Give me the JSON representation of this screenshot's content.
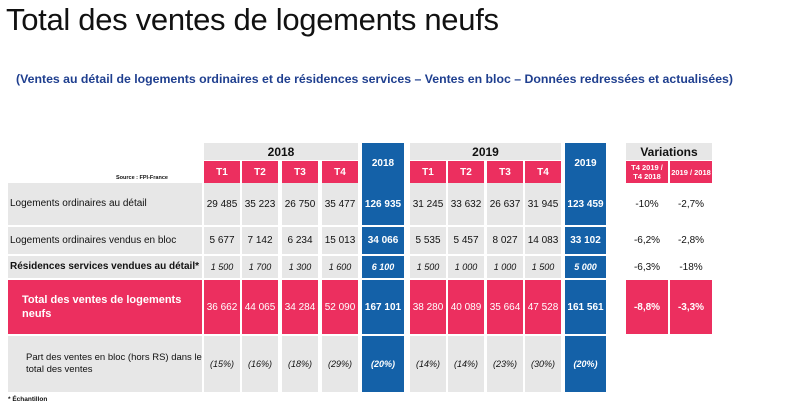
{
  "title": "Total des ventes de logements neufs",
  "subtitle": "(Ventes au détail de logements ordinaires et de résidences services – Ventes en bloc – Données redressées et actualisées)",
  "source": "Source : FPI-France",
  "footnote": "* Échantillon",
  "years": {
    "y2018": "2018",
    "y2019": "2019"
  },
  "variations": {
    "title": "Variations",
    "col1": "T4 2019 / T4 2018",
    "col2": "2019 / 2018"
  },
  "quarters": [
    "T1",
    "T2",
    "T3",
    "T4"
  ],
  "rows": [
    {
      "label": "Logements ordinaires au détail",
      "q2018": [
        "29 485",
        "35 223",
        "26 750",
        "35 477"
      ],
      "total2018": "126 935",
      "q2019": [
        "31 245",
        "33 632",
        "26 637",
        "31 945"
      ],
      "total2019": "123 459",
      "var1": "-10%",
      "var2": "-2,7%"
    },
    {
      "label": "Logements ordinaires vendus en bloc",
      "q2018": [
        "5 677",
        "7 142",
        "6 234",
        "15 013"
      ],
      "total2018": "34 066",
      "q2019": [
        "5 535",
        "5 457",
        "8 027",
        "14 083"
      ],
      "total2019": "33 102",
      "var1": "-6,2%",
      "var2": "-2,8%"
    },
    {
      "label": "Résidences services vendues au détail*",
      "q2018": [
        "1 500",
        "1 700",
        "1 300",
        "1 600"
      ],
      "total2018": "6 100",
      "q2019": [
        "1 500",
        "1 000",
        "1 000",
        "1 500"
      ],
      "total2019": "5 000",
      "var1": "-6,3%",
      "var2": "-18%"
    },
    {
      "label": "Total des ventes de logements neufs",
      "q2018": [
        "36 662",
        "44 065",
        "34 284",
        "52 090"
      ],
      "total2018": "167 101",
      "q2019": [
        "38 280",
        "40 089",
        "35 664",
        "47 528"
      ],
      "total2019": "161 561",
      "var1": "-8,8%",
      "var2": "-3,3%"
    },
    {
      "label": "Part des ventes en bloc (hors RS) dans le total des ventes",
      "q2018": [
        "(15%)",
        "(16%)",
        "(18%)",
        "(29%)"
      ],
      "total2018": "(20%)",
      "q2019": [
        "(14%)",
        "(14%)",
        "(23%)",
        "(30%)"
      ],
      "total2019": "(20%)",
      "var1": "",
      "var2": ""
    }
  ]
}
